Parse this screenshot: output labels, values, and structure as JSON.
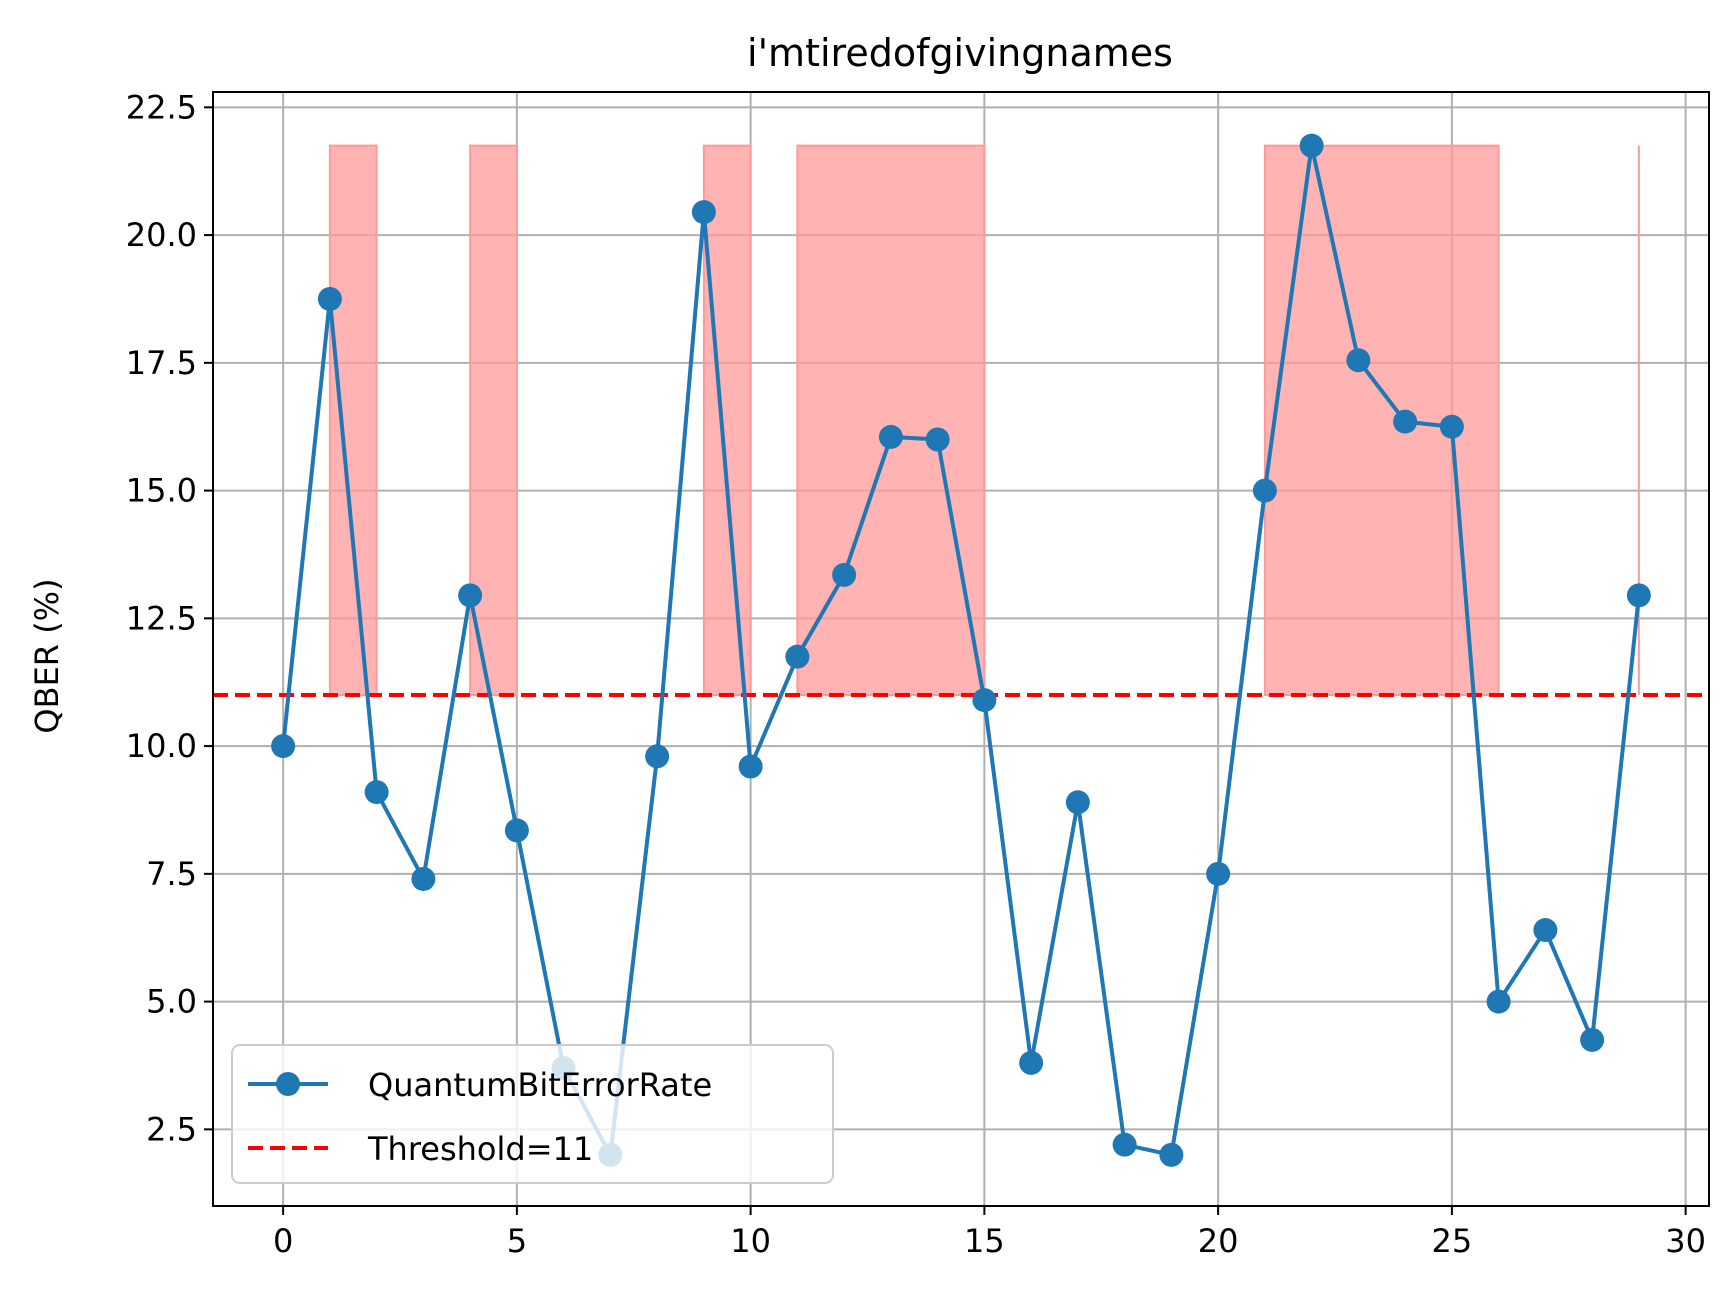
{
  "chart_data": {
    "type": "line",
    "title": "i'mtiredofgivingnames",
    "xlabel": "",
    "ylabel": "QBER (%)",
    "xlim": [
      -1.5,
      30.5
    ],
    "ylim": [
      1.0,
      22.8
    ],
    "xticks": [
      0,
      5,
      10,
      15,
      20,
      25,
      30
    ],
    "xtick_labels": [
      "0",
      "5",
      "10",
      "15",
      "20",
      "25",
      "30"
    ],
    "yticks": [
      2.5,
      5.0,
      7.5,
      10.0,
      12.5,
      15.0,
      17.5,
      20.0,
      22.5
    ],
    "ytick_labels": [
      "2.5",
      "5.0",
      "7.5",
      "10.0",
      "12.5",
      "15.0",
      "17.5",
      "20.0",
      "22.5"
    ],
    "grid": true,
    "legend_position": "lower-left",
    "x": [
      0,
      1,
      2,
      3,
      4,
      5,
      6,
      7,
      8,
      9,
      10,
      11,
      12,
      13,
      14,
      15,
      16,
      17,
      18,
      19,
      20,
      21,
      22,
      23,
      24,
      25,
      26,
      27,
      28,
      29
    ],
    "series": [
      {
        "name": "QuantumBitErrorRate",
        "color": "#1f77b4",
        "style": "line-with-markers",
        "values": [
          10.0,
          18.75,
          9.1,
          7.4,
          12.95,
          8.35,
          3.7,
          2.0,
          9.8,
          20.45,
          9.6,
          11.75,
          13.35,
          16.05,
          16.0,
          10.9,
          3.8,
          8.9,
          2.2,
          2.0,
          7.5,
          15.0,
          21.75,
          17.55,
          16.35,
          16.25,
          5.0,
          6.4,
          4.25,
          12.95
        ]
      },
      {
        "name": "Threshold=11",
        "color": "#ff0000",
        "style": "dashed",
        "value": 11
      }
    ],
    "shaded_region": {
      "color": "#ff9999",
      "description": "filled between threshold and series maximum where value exceeds threshold",
      "lower": 11,
      "upper": 21.75
    }
  }
}
